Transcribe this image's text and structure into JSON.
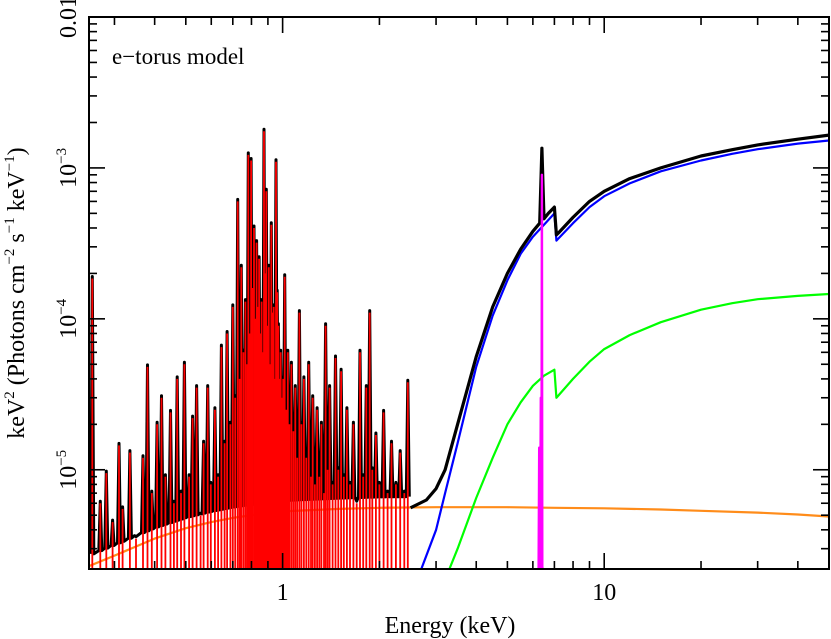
{
  "chart_data": {
    "type": "line",
    "annotation": "e−torus model",
    "xlabel": "Energy (keV)",
    "ylabel_parts": [
      "keV",
      "2",
      " (Photons cm",
      "−2",
      " s",
      "−1",
      " keV",
      "−1",
      ")"
    ],
    "x_scale": "log",
    "y_scale": "log",
    "xlim": [
      0.25,
      50
    ],
    "ylim": [
      2.2e-06,
      0.01
    ],
    "x_ticks": [
      {
        "value": 1,
        "label": "1"
      },
      {
        "value": 10,
        "label": "10"
      }
    ],
    "y_ticks": [
      {
        "value": 1e-05,
        "base": "10",
        "exp": "−5"
      },
      {
        "value": 0.0001,
        "base": "10",
        "exp": "−4"
      },
      {
        "value": 0.001,
        "base": "10",
        "exp": "−3"
      },
      {
        "value": 0.01,
        "label": "0.01"
      }
    ],
    "grid": false,
    "legend": "none",
    "series": [
      {
        "key": "total",
        "color": "#000000",
        "x": [
          2.5,
          2.8,
          3.0,
          3.2,
          3.5,
          4.0,
          4.5,
          5.0,
          5.5,
          6.0,
          6.3,
          6.4,
          6.5,
          6.7,
          7.0,
          7.1,
          7.2,
          8.0,
          9.0,
          10.0,
          12.0,
          15.0,
          20.0,
          25.0,
          30.0,
          40.0,
          50.0
        ],
        "y": [
          5.6e-06,
          6.3e-06,
          7.5e-06,
          1e-05,
          2e-05,
          5.6e-05,
          0.00012,
          0.0002,
          0.00029,
          0.00038,
          0.00043,
          0.00135,
          0.00046,
          0.0005,
          0.00055,
          0.00036,
          0.00037,
          0.00047,
          0.0006,
          0.0007,
          0.00085,
          0.001,
          0.0012,
          0.00132,
          0.00142,
          0.00155,
          0.00165
        ]
      },
      {
        "key": "absorbed-power-law",
        "color": "#0000ff",
        "x": [
          2.7,
          3.0,
          3.2,
          3.5,
          4.0,
          4.5,
          5.0,
          5.5,
          6.0,
          6.5,
          7.0,
          7.1,
          7.2,
          8.0,
          9.0,
          10.0,
          12.0,
          15.0,
          20.0,
          25.0,
          30.0,
          40.0,
          50.0
        ],
        "y": [
          2.2e-06,
          4e-06,
          7e-06,
          1.5e-05,
          4.8e-05,
          0.000105,
          0.00018,
          0.00027,
          0.00035,
          0.00042,
          0.0005,
          0.00033,
          0.00034,
          0.00043,
          0.00055,
          0.00065,
          0.00079,
          0.00095,
          0.00112,
          0.00124,
          0.00133,
          0.00145,
          0.00152
        ]
      },
      {
        "key": "reflection",
        "color": "#00ff00",
        "x": [
          3.3,
          3.5,
          4.0,
          4.5,
          5.0,
          5.5,
          6.0,
          6.5,
          7.0,
          7.1,
          7.2,
          8.0,
          9.0,
          10.0,
          12.0,
          15.0,
          20.0,
          25.0,
          30.0,
          40.0,
          50.0
        ],
        "y": [
          2.2e-06,
          3e-06,
          6.5e-06,
          1.2e-05,
          2e-05,
          2.8e-05,
          3.6e-05,
          4.2e-05,
          4.6e-05,
          3e-05,
          3.1e-05,
          4e-05,
          5.2e-05,
          6.3e-05,
          7.8e-05,
          9.5e-05,
          0.000115,
          0.000127,
          0.000135,
          0.000142,
          0.000146
        ]
      },
      {
        "key": "soft-continuum",
        "color": "#ff8c1a",
        "x": [
          0.25,
          0.3,
          0.4,
          0.5,
          0.6,
          0.7,
          0.8,
          1.0,
          1.5,
          2.0,
          3.0,
          5.0,
          7.0,
          10.0,
          15.0,
          20.0,
          30.0,
          40.0,
          50.0
        ],
        "y": [
          2.3e-06,
          2.7e-06,
          3.5e-06,
          4.1e-06,
          4.5e-06,
          4.8e-06,
          5e-06,
          5.3e-06,
          5.5e-06,
          5.6e-06,
          5.65e-06,
          5.65e-06,
          5.6e-06,
          5.55e-06,
          5.45e-06,
          5.35e-06,
          5.2e-06,
          5.05e-06,
          4.9e-06
        ]
      },
      {
        "key": "iron-line",
        "color": "#ff00ff",
        "x": [
          6.2,
          6.25,
          6.28,
          6.3,
          6.32,
          6.35,
          6.38,
          6.4,
          6.42,
          6.45,
          6.5
        ],
        "y": [
          2.2e-06,
          2.2e-06,
          1.4e-05,
          2.2e-06,
          2.2e-06,
          3e-05,
          2.2e-06,
          0.0009,
          2.2e-06,
          2.2e-06,
          2.2e-06
        ]
      }
    ],
    "emission_lines": {
      "color": "#ff0000",
      "envelope_color": "#000000",
      "floor": 2.2e-06,
      "lines": [
        [
          0.256,
          0.000185
        ],
        [
          0.271,
          6e-06
        ],
        [
          0.283,
          9.5e-06
        ],
        [
          0.296,
          4.5e-06
        ],
        [
          0.31,
          1.45e-05
        ],
        [
          0.318,
          5.5e-06
        ],
        [
          0.335,
          1.3e-05
        ],
        [
          0.35,
          3.5e-06
        ],
        [
          0.368,
          1.2e-05
        ],
        [
          0.38,
          4.8e-05
        ],
        [
          0.392,
          7e-06
        ],
        [
          0.407,
          2e-05
        ],
        [
          0.42,
          3e-05
        ],
        [
          0.432,
          9e-06
        ],
        [
          0.448,
          2.4e-05
        ],
        [
          0.459,
          6e-06
        ],
        [
          0.47,
          4e-05
        ],
        [
          0.483,
          7e-06
        ],
        [
          0.495,
          5e-05
        ],
        [
          0.512,
          9e-06
        ],
        [
          0.525,
          2.2e-05
        ],
        [
          0.54,
          3.5e-05
        ],
        [
          0.556,
          5e-06
        ],
        [
          0.568,
          1.5e-05
        ],
        [
          0.585,
          3.5e-05
        ],
        [
          0.598,
          8e-06
        ],
        [
          0.616,
          2.5e-05
        ],
        [
          0.63,
          9e-06
        ],
        [
          0.645,
          6.5e-05
        ],
        [
          0.66,
          1.5e-05
        ],
        [
          0.672,
          8e-05
        ],
        [
          0.688,
          2e-05
        ],
        [
          0.7,
          0.00012
        ],
        [
          0.712,
          3e-05
        ],
        [
          0.725,
          0.0006
        ],
        [
          0.735,
          4e-05
        ],
        [
          0.744,
          0.00022
        ],
        [
          0.755,
          6e-05
        ],
        [
          0.766,
          0.00013
        ],
        [
          0.775,
          5e-05
        ],
        [
          0.782,
          0.00122
        ],
        [
          0.79,
          8e-05
        ],
        [
          0.798,
          0.00112
        ],
        [
          0.806,
          0.00016
        ],
        [
          0.815,
          0.0004
        ],
        [
          0.822,
          0.0001
        ],
        [
          0.83,
          0.00032
        ],
        [
          0.838,
          0.00012
        ],
        [
          0.845,
          0.00025
        ],
        [
          0.853,
          8e-05
        ],
        [
          0.86,
          0.00013
        ],
        [
          0.868,
          6e-05
        ],
        [
          0.875,
          0.00175
        ],
        [
          0.883,
          0.0002
        ],
        [
          0.89,
          0.0007
        ],
        [
          0.898,
          9e-05
        ],
        [
          0.906,
          0.00022
        ],
        [
          0.913,
          5e-05
        ],
        [
          0.922,
          0.00042
        ],
        [
          0.93,
          0.00011
        ],
        [
          0.938,
          0.00012
        ],
        [
          0.946,
          4e-05
        ],
        [
          0.954,
          0.0011
        ],
        [
          0.962,
          0.00015
        ],
        [
          0.97,
          9e-05
        ],
        [
          0.978,
          4e-05
        ],
        [
          0.986,
          6e-05
        ],
        [
          0.995,
          3e-05
        ],
        [
          1.004,
          4e-05
        ],
        [
          1.015,
          0.00019
        ],
        [
          1.025,
          2.5e-05
        ],
        [
          1.038,
          6e-05
        ],
        [
          1.05,
          2e-05
        ],
        [
          1.065,
          5e-05
        ],
        [
          1.08,
          1.8e-05
        ],
        [
          1.095,
          3.5e-05
        ],
        [
          1.11,
          1.2e-05
        ],
        [
          1.128,
          0.00011
        ],
        [
          1.145,
          2e-05
        ],
        [
          1.165,
          4e-05
        ],
        [
          1.185,
          1.2e-05
        ],
        [
          1.205,
          5e-05
        ],
        [
          1.225,
          9e-06
        ],
        [
          1.24,
          3e-05
        ],
        [
          1.26,
          8e-06
        ],
        [
          1.28,
          2.5e-05
        ],
        [
          1.3,
          9e-06
        ],
        [
          1.32,
          2e-05
        ],
        [
          1.345,
          7e-06
        ],
        [
          1.36,
          9e-05
        ],
        [
          1.38,
          1e-05
        ],
        [
          1.4,
          3.5e-05
        ],
        [
          1.43,
          8e-06
        ],
        [
          1.46,
          5.5e-05
        ],
        [
          1.49,
          1e-05
        ],
        [
          1.52,
          4.5e-05
        ],
        [
          1.55,
          9e-06
        ],
        [
          1.585,
          2.5e-05
        ],
        [
          1.62,
          8e-06
        ],
        [
          1.66,
          2e-05
        ],
        [
          1.7,
          6e-06
        ],
        [
          1.74,
          6e-05
        ],
        [
          1.78,
          9e-06
        ],
        [
          1.82,
          3.5e-05
        ],
        [
          1.865,
          0.00011
        ],
        [
          1.9,
          1e-05
        ],
        [
          1.95,
          1.7e-05
        ],
        [
          2.0,
          8e-06
        ],
        [
          2.06,
          2.4e-05
        ],
        [
          2.12,
          7e-06
        ],
        [
          2.18,
          1.5e-05
        ],
        [
          2.25,
          8e-06
        ],
        [
          2.32,
          1.3e-05
        ],
        [
          2.39,
          7e-06
        ],
        [
          2.45,
          3.8e-05
        ]
      ]
    }
  }
}
